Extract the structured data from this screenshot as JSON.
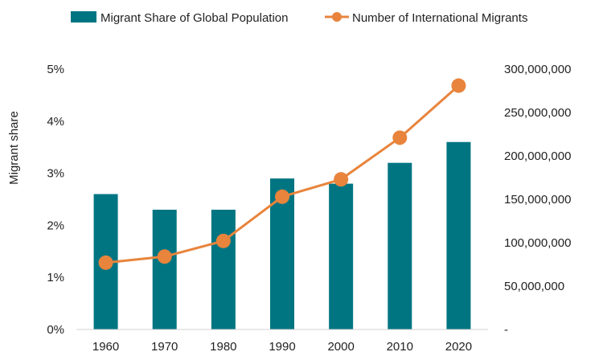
{
  "chart_data": {
    "type": "bar",
    "categories": [
      "1960",
      "1970",
      "1980",
      "1990",
      "2000",
      "2010",
      "2020"
    ],
    "series": [
      {
        "name": "Migrant Share of Global Population",
        "type": "bar",
        "axis": "left",
        "color": "#007582",
        "values": [
          2.6,
          2.3,
          2.3,
          2.9,
          2.8,
          3.2,
          3.6
        ]
      },
      {
        "name": "Number of International Migrants",
        "type": "line",
        "axis": "right",
        "color": "#E8843C",
        "values": [
          77000000,
          84000000,
          102000000,
          153000000,
          173000000,
          221000000,
          281000000
        ]
      }
    ],
    "ylabel_left": "Migrant share",
    "ylim_left": [
      0,
      5
    ],
    "yticks_left": [
      "0%",
      "1%",
      "2%",
      "3%",
      "4%",
      "5%"
    ],
    "ylim_right": [
      0,
      300000000
    ],
    "yticks_right": [
      "-",
      "50,000,000",
      "100,000,000",
      "150,000,000",
      "200,000,000",
      "250,000,000",
      "300,000,000"
    ],
    "grid": false,
    "legend_position": "top"
  }
}
